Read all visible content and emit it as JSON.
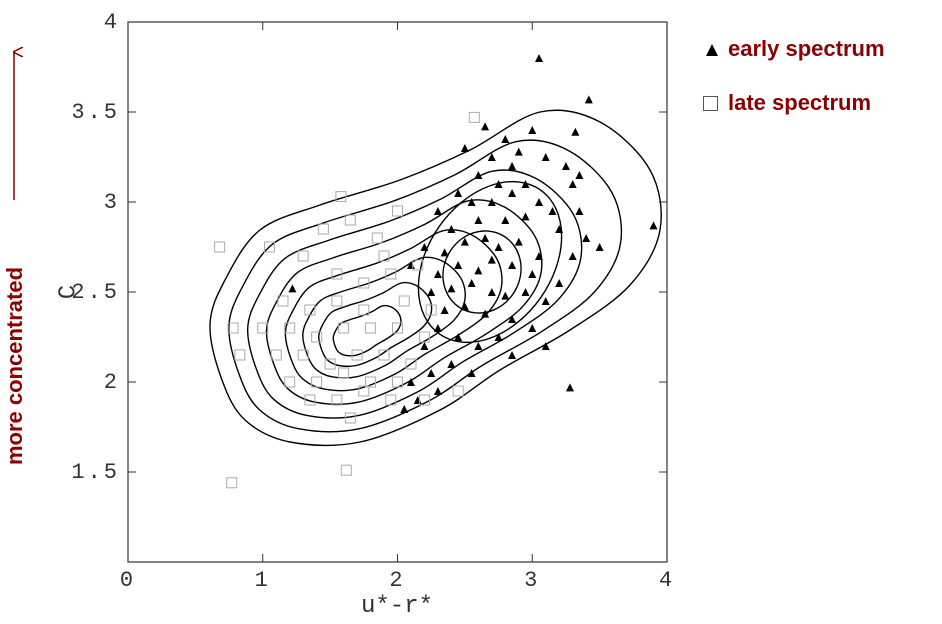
{
  "chart_data": {
    "type": "scatter",
    "xlabel": "u*-r*",
    "ylabel": "C",
    "annotation": "more concentrated",
    "xlim": [
      0,
      4
    ],
    "ylim": [
      1,
      4
    ],
    "xticks": [
      0,
      1,
      2,
      3,
      4
    ],
    "yticks": [
      1.5,
      2,
      2.5,
      3,
      3.5,
      4
    ],
    "series": [
      {
        "name": "early spectrum",
        "marker": "triangle",
        "color": "#000000",
        "x": [
          3.05,
          3.42,
          3.32,
          3.9,
          3.28,
          1.22,
          2.65,
          2.8,
          3.0,
          2.5,
          2.7,
          2.9,
          3.1,
          2.6,
          2.85,
          3.25,
          3.3,
          2.75,
          2.95,
          2.45,
          2.55,
          2.7,
          2.85,
          3.05,
          3.15,
          3.35,
          2.3,
          2.4,
          2.6,
          2.8,
          2.95,
          3.2,
          3.4,
          2.2,
          2.35,
          2.5,
          2.65,
          2.75,
          2.9,
          3.05,
          3.3,
          2.1,
          2.3,
          2.45,
          2.6,
          2.7,
          2.85,
          3.0,
          3.2,
          2.25,
          2.4,
          2.55,
          2.7,
          2.8,
          2.95,
          3.1,
          2.35,
          2.5,
          2.65,
          2.85,
          3.0,
          2.3,
          2.45,
          2.6,
          2.75,
          2.2,
          2.4,
          2.55,
          2.25,
          2.1,
          2.85,
          3.1,
          2.15,
          2.05,
          2.3,
          3.5,
          3.35
        ],
        "y": [
          3.8,
          3.57,
          3.39,
          2.87,
          1.97,
          2.52,
          3.42,
          3.35,
          3.4,
          3.3,
          3.25,
          3.28,
          3.25,
          3.15,
          3.2,
          3.2,
          3.1,
          3.1,
          3.1,
          3.05,
          3.0,
          3.0,
          3.05,
          3.0,
          2.95,
          2.95,
          2.95,
          2.85,
          2.9,
          2.9,
          2.92,
          2.85,
          2.8,
          2.75,
          2.72,
          2.78,
          2.8,
          2.75,
          2.78,
          2.7,
          2.7,
          2.65,
          2.6,
          2.65,
          2.62,
          2.68,
          2.65,
          2.6,
          2.55,
          2.5,
          2.52,
          2.55,
          2.5,
          2.48,
          2.5,
          2.45,
          2.4,
          2.42,
          2.38,
          2.35,
          2.3,
          2.3,
          2.25,
          2.2,
          2.25,
          2.2,
          2.1,
          2.05,
          2.05,
          2.0,
          2.15,
          2.2,
          1.9,
          1.85,
          1.95,
          2.75,
          3.15
        ]
      },
      {
        "name": "late spectrum",
        "marker": "square",
        "color": "#aaaaaa",
        "x": [
          0.77,
          1.62,
          0.68,
          1.58,
          2.57,
          0.78,
          0.83,
          1.05,
          1.3,
          1.45,
          1.65,
          1.85,
          2.0,
          1.55,
          1.75,
          1.95,
          1.15,
          1.35,
          1.55,
          1.75,
          2.05,
          2.25,
          1.0,
          1.2,
          1.4,
          1.6,
          1.8,
          2.0,
          2.2,
          1.1,
          1.3,
          1.5,
          1.7,
          1.9,
          2.1,
          1.2,
          1.4,
          1.6,
          1.8,
          2.0,
          1.35,
          1.55,
          1.75,
          1.95,
          1.65,
          2.2,
          2.45,
          1.9,
          2.15
        ],
        "y": [
          1.44,
          1.51,
          2.75,
          3.03,
          3.47,
          2.3,
          2.15,
          2.75,
          2.7,
          2.85,
          2.9,
          2.8,
          2.95,
          2.6,
          2.55,
          2.6,
          2.45,
          2.4,
          2.45,
          2.4,
          2.45,
          2.4,
          2.3,
          2.3,
          2.25,
          2.3,
          2.3,
          2.3,
          2.25,
          2.15,
          2.15,
          2.1,
          2.15,
          2.15,
          2.1,
          2.0,
          2.0,
          2.05,
          2.0,
          2.0,
          1.9,
          1.9,
          1.95,
          1.9,
          1.8,
          1.9,
          1.95,
          2.7,
          2.65
        ]
      }
    ]
  }
}
